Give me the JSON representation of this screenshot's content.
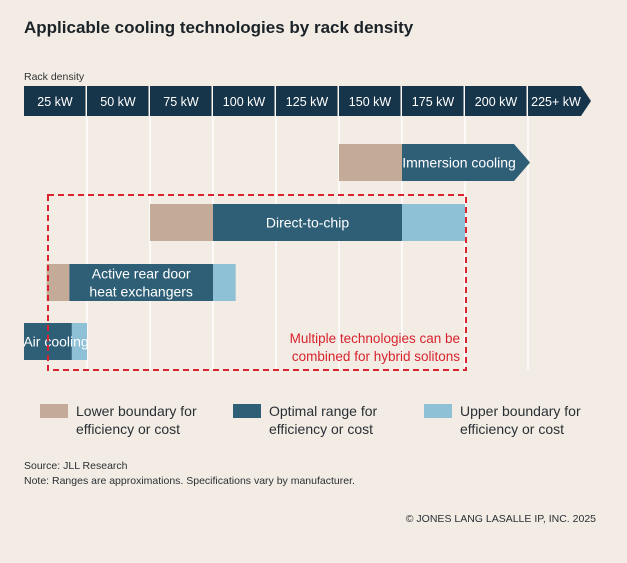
{
  "chart_data": {
    "type": "bar",
    "title": "Applicable cooling technologies by rack density",
    "axis_label": "Rack density",
    "categories": [
      "25 kW",
      "50 kW",
      "75 kW",
      "100 kW",
      "125 kW",
      "150 kW",
      "175 kW",
      "200 kW",
      "225+ kW"
    ],
    "series": [
      {
        "name": "Immersion cooling",
        "segments": [
          {
            "kind": "lower",
            "from": 150,
            "to": 175
          },
          {
            "kind": "optimal",
            "from": 175,
            "to": 225,
            "open_ended": true
          }
        ]
      },
      {
        "name": "Direct-to-chip",
        "segments": [
          {
            "kind": "lower",
            "from": 75,
            "to": 100
          },
          {
            "kind": "optimal",
            "from": 100,
            "to": 175
          },
          {
            "kind": "upper",
            "from": 175,
            "to": 200
          }
        ]
      },
      {
        "name": "Active rear door heat exchangers",
        "label_lines": [
          "Active rear door",
          "heat exchangers"
        ],
        "segments": [
          {
            "kind": "lower",
            "from": 34,
            "to": 43
          },
          {
            "kind": "optimal",
            "from": 43,
            "to": 100
          },
          {
            "kind": "upper",
            "from": 100,
            "to": 109
          }
        ]
      },
      {
        "name": "Air cooling",
        "segments": [
          {
            "kind": "optimal",
            "from": 25,
            "to": 44
          },
          {
            "kind": "upper",
            "from": 44,
            "to": 50
          }
        ]
      }
    ],
    "annotation": [
      "Multiple technologies can be",
      "combined for hybrid solitons"
    ],
    "legend": [
      {
        "kind": "lower",
        "lines": [
          "Lower boundary for",
          "efficiency or cost"
        ]
      },
      {
        "kind": "optimal",
        "lines": [
          "Optimal range for",
          "efficiency or cost"
        ]
      },
      {
        "kind": "upper",
        "lines": [
          "Upper boundary for",
          "efficiency or cost"
        ]
      }
    ],
    "colors": {
      "lower": "#c4ab98",
      "optimal": "#2e5f77",
      "upper": "#8ec0d6",
      "axis": "#17354a",
      "annotation": "#d9232e",
      "background": "#f2ece4"
    }
  },
  "footer": {
    "source": "Source: JLL Research",
    "note": "Note: Ranges are approximations. Specifications vary by manufacturer.",
    "copyright": "© JONES LANG LASALLE IP, INC. 2025"
  }
}
